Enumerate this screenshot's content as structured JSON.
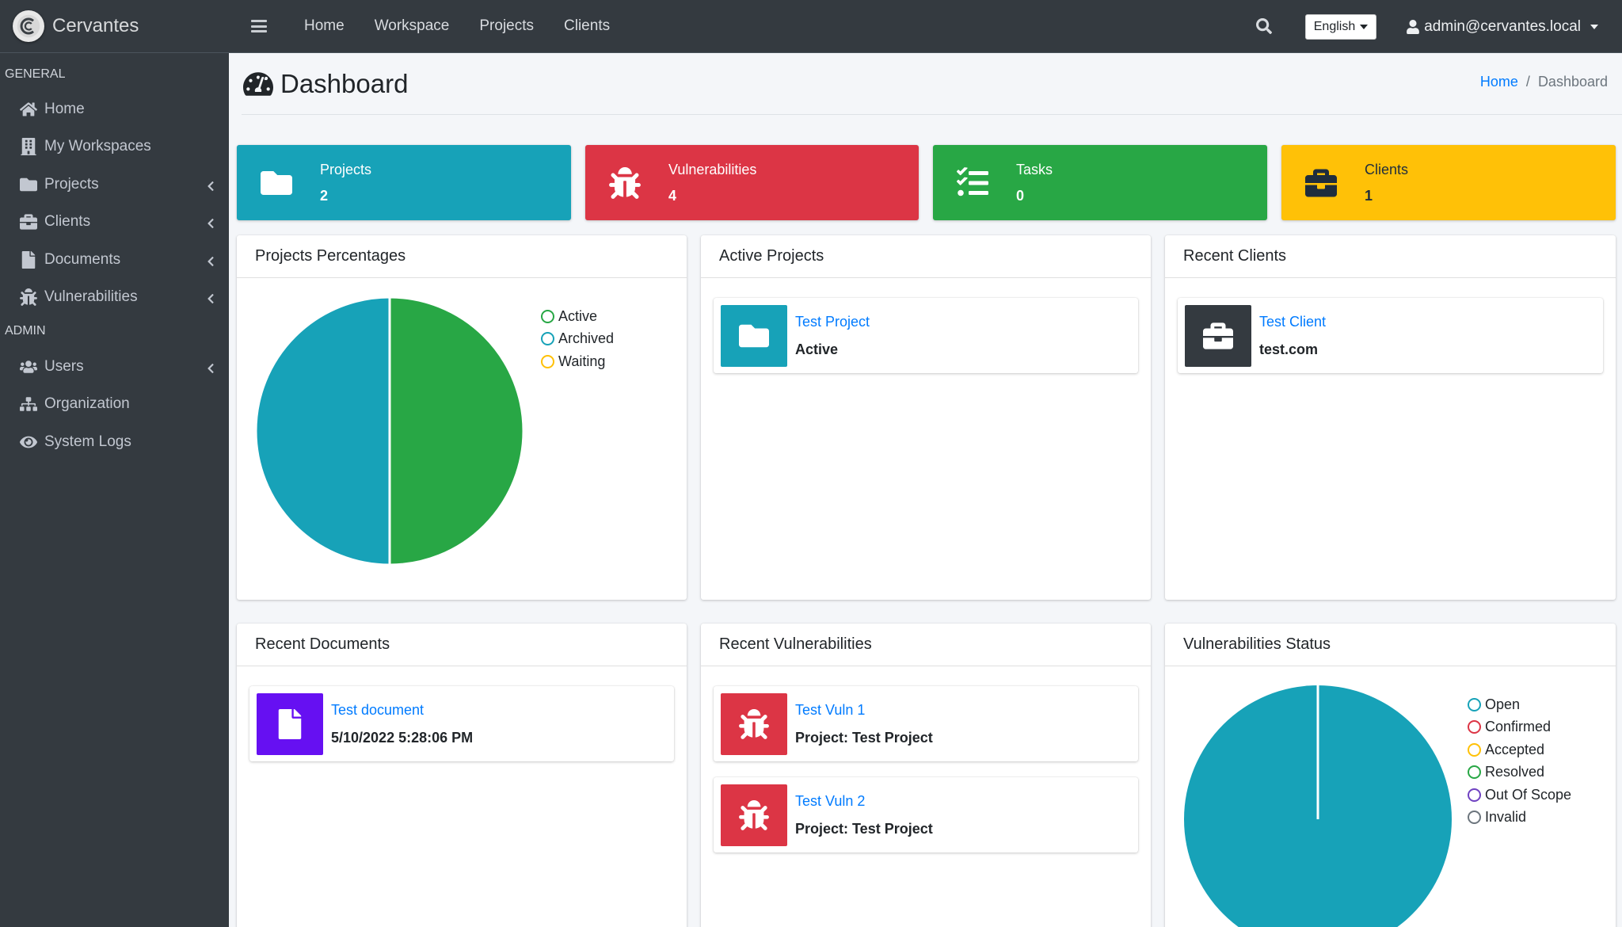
{
  "app": {
    "brand": "Cervantes"
  },
  "sidebar": {
    "sections": [
      {
        "header": "GENERAL",
        "items": [
          {
            "label": "Home",
            "icon": "home-icon",
            "chevron": false
          },
          {
            "label": "My Workspaces",
            "icon": "building-icon",
            "chevron": false
          },
          {
            "label": "Projects",
            "icon": "folder-icon",
            "chevron": true
          },
          {
            "label": "Clients",
            "icon": "briefcase-icon",
            "chevron": true
          },
          {
            "label": "Documents",
            "icon": "file-icon",
            "chevron": true
          },
          {
            "label": "Vulnerabilities",
            "icon": "bug-icon",
            "chevron": true
          }
        ]
      },
      {
        "header": "ADMIN",
        "items": [
          {
            "label": "Users",
            "icon": "users-icon",
            "chevron": true
          },
          {
            "label": "Organization",
            "icon": "sitemap-icon",
            "chevron": false
          },
          {
            "label": "System Logs",
            "icon": "eye-icon",
            "chevron": false
          }
        ]
      }
    ]
  },
  "topbar": {
    "links": [
      "Home",
      "Workspace",
      "Projects",
      "Clients"
    ],
    "language": "English",
    "user": "admin@cervantes.local"
  },
  "page": {
    "title": "Dashboard",
    "breadcrumb": {
      "home": "Home",
      "current": "Dashboard"
    }
  },
  "info_boxes": [
    {
      "label": "Projects",
      "value": "2",
      "color": "#17a2b8",
      "icon": "folder-icon"
    },
    {
      "label": "Vulnerabilities",
      "value": "4",
      "color": "#dc3545",
      "icon": "bug-icon"
    },
    {
      "label": "Tasks",
      "value": "0",
      "color": "#28a745",
      "icon": "tasks-icon"
    },
    {
      "label": "Clients",
      "value": "1",
      "color": "#ffc107",
      "icon": "briefcase-icon"
    }
  ],
  "cards": {
    "projects_percentages": {
      "title": "Projects Percentages",
      "chart_data": {
        "type": "pie",
        "categories": [
          "Active",
          "Archived",
          "Waiting"
        ],
        "values": [
          1,
          1,
          0
        ],
        "colors": [
          "#28a745",
          "#17a2b8",
          "#ffc107"
        ],
        "legend_placement": "top-right"
      }
    },
    "active_projects": {
      "title": "Active Projects",
      "items": [
        {
          "title": "Test Project",
          "sub": "Active",
          "icon": "folder-icon",
          "color": "#17a2b8"
        }
      ]
    },
    "recent_clients": {
      "title": "Recent Clients",
      "items": [
        {
          "title": "Test Client",
          "sub": "test.com",
          "icon": "briefcase-icon",
          "color": "#343a40"
        }
      ]
    },
    "recent_documents": {
      "title": "Recent Documents",
      "items": [
        {
          "title": "Test document",
          "sub": "5/10/2022 5:28:06 PM",
          "icon": "file-icon",
          "color": "#6610f2"
        }
      ]
    },
    "recent_vulnerabilities": {
      "title": "Recent Vulnerabilities",
      "items": [
        {
          "title": "Test Vuln 1",
          "sub": "Project: Test Project",
          "icon": "bug-icon",
          "color": "#dc3545"
        },
        {
          "title": "Test Vuln 2",
          "sub": "Project: Test Project",
          "icon": "bug-icon",
          "color": "#dc3545"
        }
      ]
    },
    "vulnerabilities_status": {
      "title": "Vulnerabilities Status",
      "chart_data": {
        "type": "pie",
        "categories": [
          "Open",
          "Confirmed",
          "Accepted",
          "Resolved",
          "Out Of Scope",
          "Invalid"
        ],
        "values": [
          4,
          0,
          0,
          0,
          0,
          0
        ],
        "colors": [
          "#17a2b8",
          "#dc3545",
          "#ffc107",
          "#28a745",
          "#6f42c1",
          "#6c757d"
        ],
        "legend_placement": "top-right"
      }
    }
  }
}
